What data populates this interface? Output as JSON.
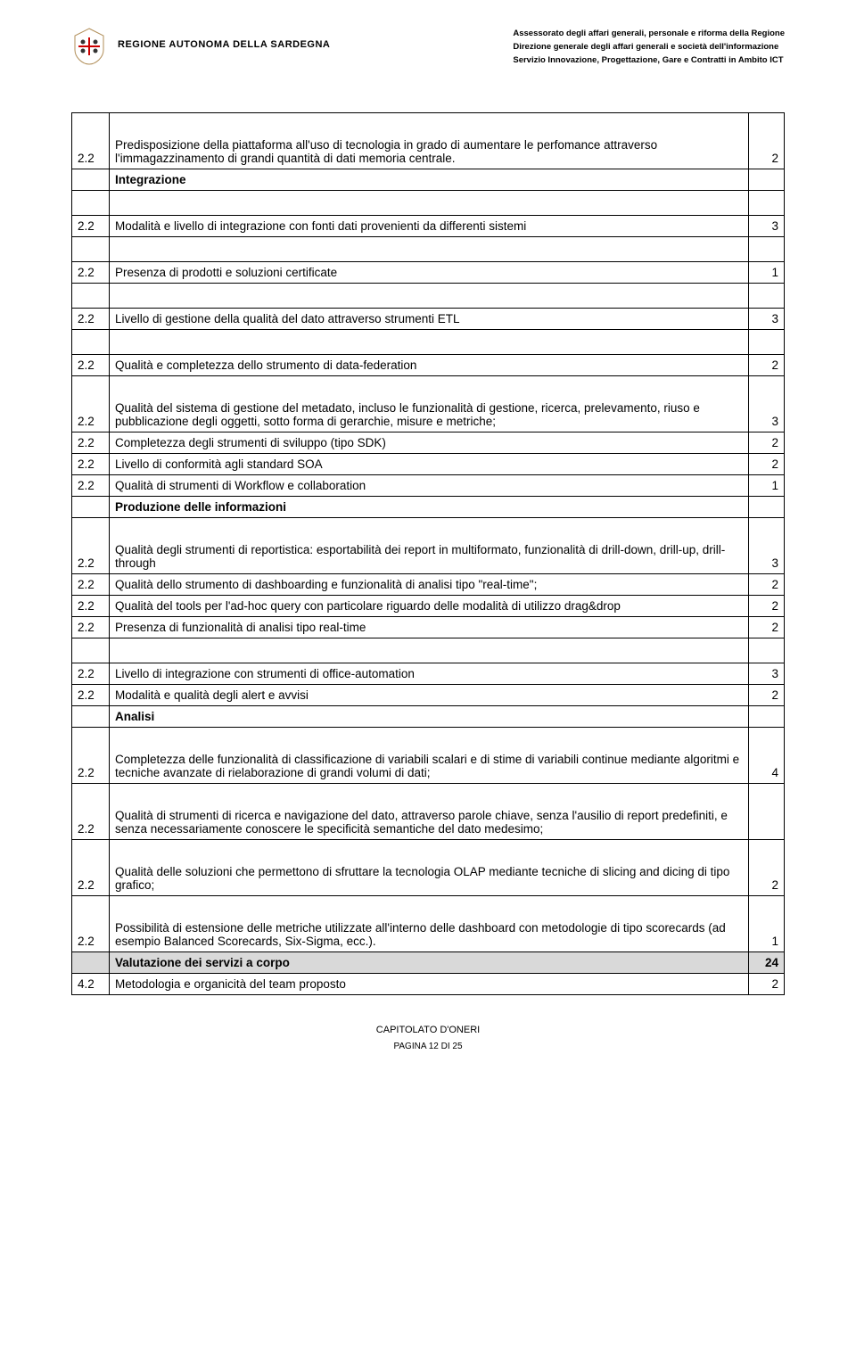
{
  "header": {
    "logo_alt": "Sardegna Logo",
    "region_name": "REGIONE AUTONOMA DELLA SARDEGNA",
    "line1": "Assessorato degli affari generali, personale e riforma della Regione",
    "line2": "Direzione generale degli affari generali e società dell'informazione",
    "line3": "Servizio Innovazione, Progettazione, Gare e Contratti in Ambito ICT"
  },
  "rows": [
    {
      "id": "2.2",
      "desc": "Predisposizione della piattaforma all'uso di tecnologia in grado di aumentare le perfomance attraverso l'immagazzinamento di grandi quantità di dati memoria centrale.",
      "score": "2",
      "tall": true
    },
    {
      "id": "",
      "desc": "Integrazione",
      "score": "",
      "bold": true
    },
    {
      "id": "2.2",
      "desc": "Modalità e livello di integrazione con fonti dati provenienti da differenti sistemi",
      "score": "3",
      "spacer_before": true
    },
    {
      "id": "2.2",
      "desc": "Presenza di prodotti e soluzioni certificate",
      "score": "1",
      "spacer_before": true
    },
    {
      "id": "2.2",
      "desc": "Livello di gestione della qualità del dato attraverso strumenti ETL",
      "score": "3",
      "spacer_before": true
    },
    {
      "id": "2.2",
      "desc": "Qualità e completezza dello strumento di data-federation",
      "score": "2",
      "spacer_before": true
    },
    {
      "id": "2.2",
      "desc": "Qualità del sistema di gestione del metadato, incluso le funzionalità di gestione, ricerca, prelevamento, riuso e pubblicazione degli oggetti, sotto forma di gerarchie, misure e metriche;",
      "score": "3",
      "tall": true
    },
    {
      "id": "2.2",
      "desc": "Completezza degli strumenti di sviluppo (tipo SDK)",
      "score": "2"
    },
    {
      "id": "2.2",
      "desc": "Livello di conformità agli standard SOA",
      "score": "2"
    },
    {
      "id": "2.2",
      "desc": "Qualità di strumenti di Workflow e collaboration",
      "score": "1"
    },
    {
      "id": "",
      "desc": "Produzione delle informazioni",
      "score": "",
      "bold": true
    },
    {
      "id": "2.2",
      "desc": "Qualità degli strumenti di reportistica: esportabilità dei report in multiformato, funzionalità di drill-down, drill-up, drill-through",
      "score": "3",
      "tall": true
    },
    {
      "id": "2.2",
      "desc": "Qualità dello strumento di dashboarding e funzionalità di analisi tipo \"real-time\";",
      "score": "2"
    },
    {
      "id": "2.2",
      "desc": "Qualità del tools per l'ad-hoc query con particolare riguardo delle modalità di utilizzo drag&drop",
      "score": "2"
    },
    {
      "id": "2.2",
      "desc": "Presenza di funzionalità di analisi tipo real-time",
      "score": "2"
    },
    {
      "id": "2.2",
      "desc": "Livello di integrazione con strumenti di office-automation",
      "score": "3",
      "spacer_before": true
    },
    {
      "id": "2.2",
      "desc": "Modalità e qualità degli alert e avvisi",
      "score": "2"
    },
    {
      "id": "",
      "desc": "Analisi",
      "score": "",
      "bold": true
    },
    {
      "id": "2.2",
      "desc": "Completezza delle funzionalità di classificazione di variabili scalari e di stime di variabili continue mediante algoritmi e tecniche avanzate di rielaborazione di grandi volumi di dati;",
      "score": "4",
      "tall": true
    },
    {
      "id": "2.2",
      "desc": "Qualità di strumenti di ricerca e navigazione del dato, attraverso parole chiave, senza l'ausilio di report predefiniti, e senza necessariamente conoscere le specificità semantiche del dato medesimo;",
      "score": "",
      "tall": true,
      "justify": true
    },
    {
      "id": "2.2",
      "desc": "Qualità delle soluzioni che permettono di sfruttare la tecnologia OLAP mediante tecniche di slicing and dicing di tipo grafico;",
      "score": "2",
      "tall": true
    },
    {
      "id": "2.2",
      "desc": "Possibilità di estensione delle metriche utilizzate all'interno delle dashboard con metodologie di tipo scorecards (ad esempio Balanced Scorecards, Six-Sigma, ecc.).",
      "score": "1",
      "tall": true,
      "justify": true
    },
    {
      "id": "",
      "desc": "Valutazione dei servizi a corpo",
      "score": "24",
      "bold": true,
      "shaded": true
    },
    {
      "id": "4.2",
      "desc": "Metodologia e organicità del team proposto",
      "score": "2"
    }
  ],
  "footer": {
    "title": "CAPITOLATO D'ONERI",
    "page_prefix": "PAGINA ",
    "page_current": "12",
    "page_sep": " DI ",
    "page_total": "25"
  }
}
